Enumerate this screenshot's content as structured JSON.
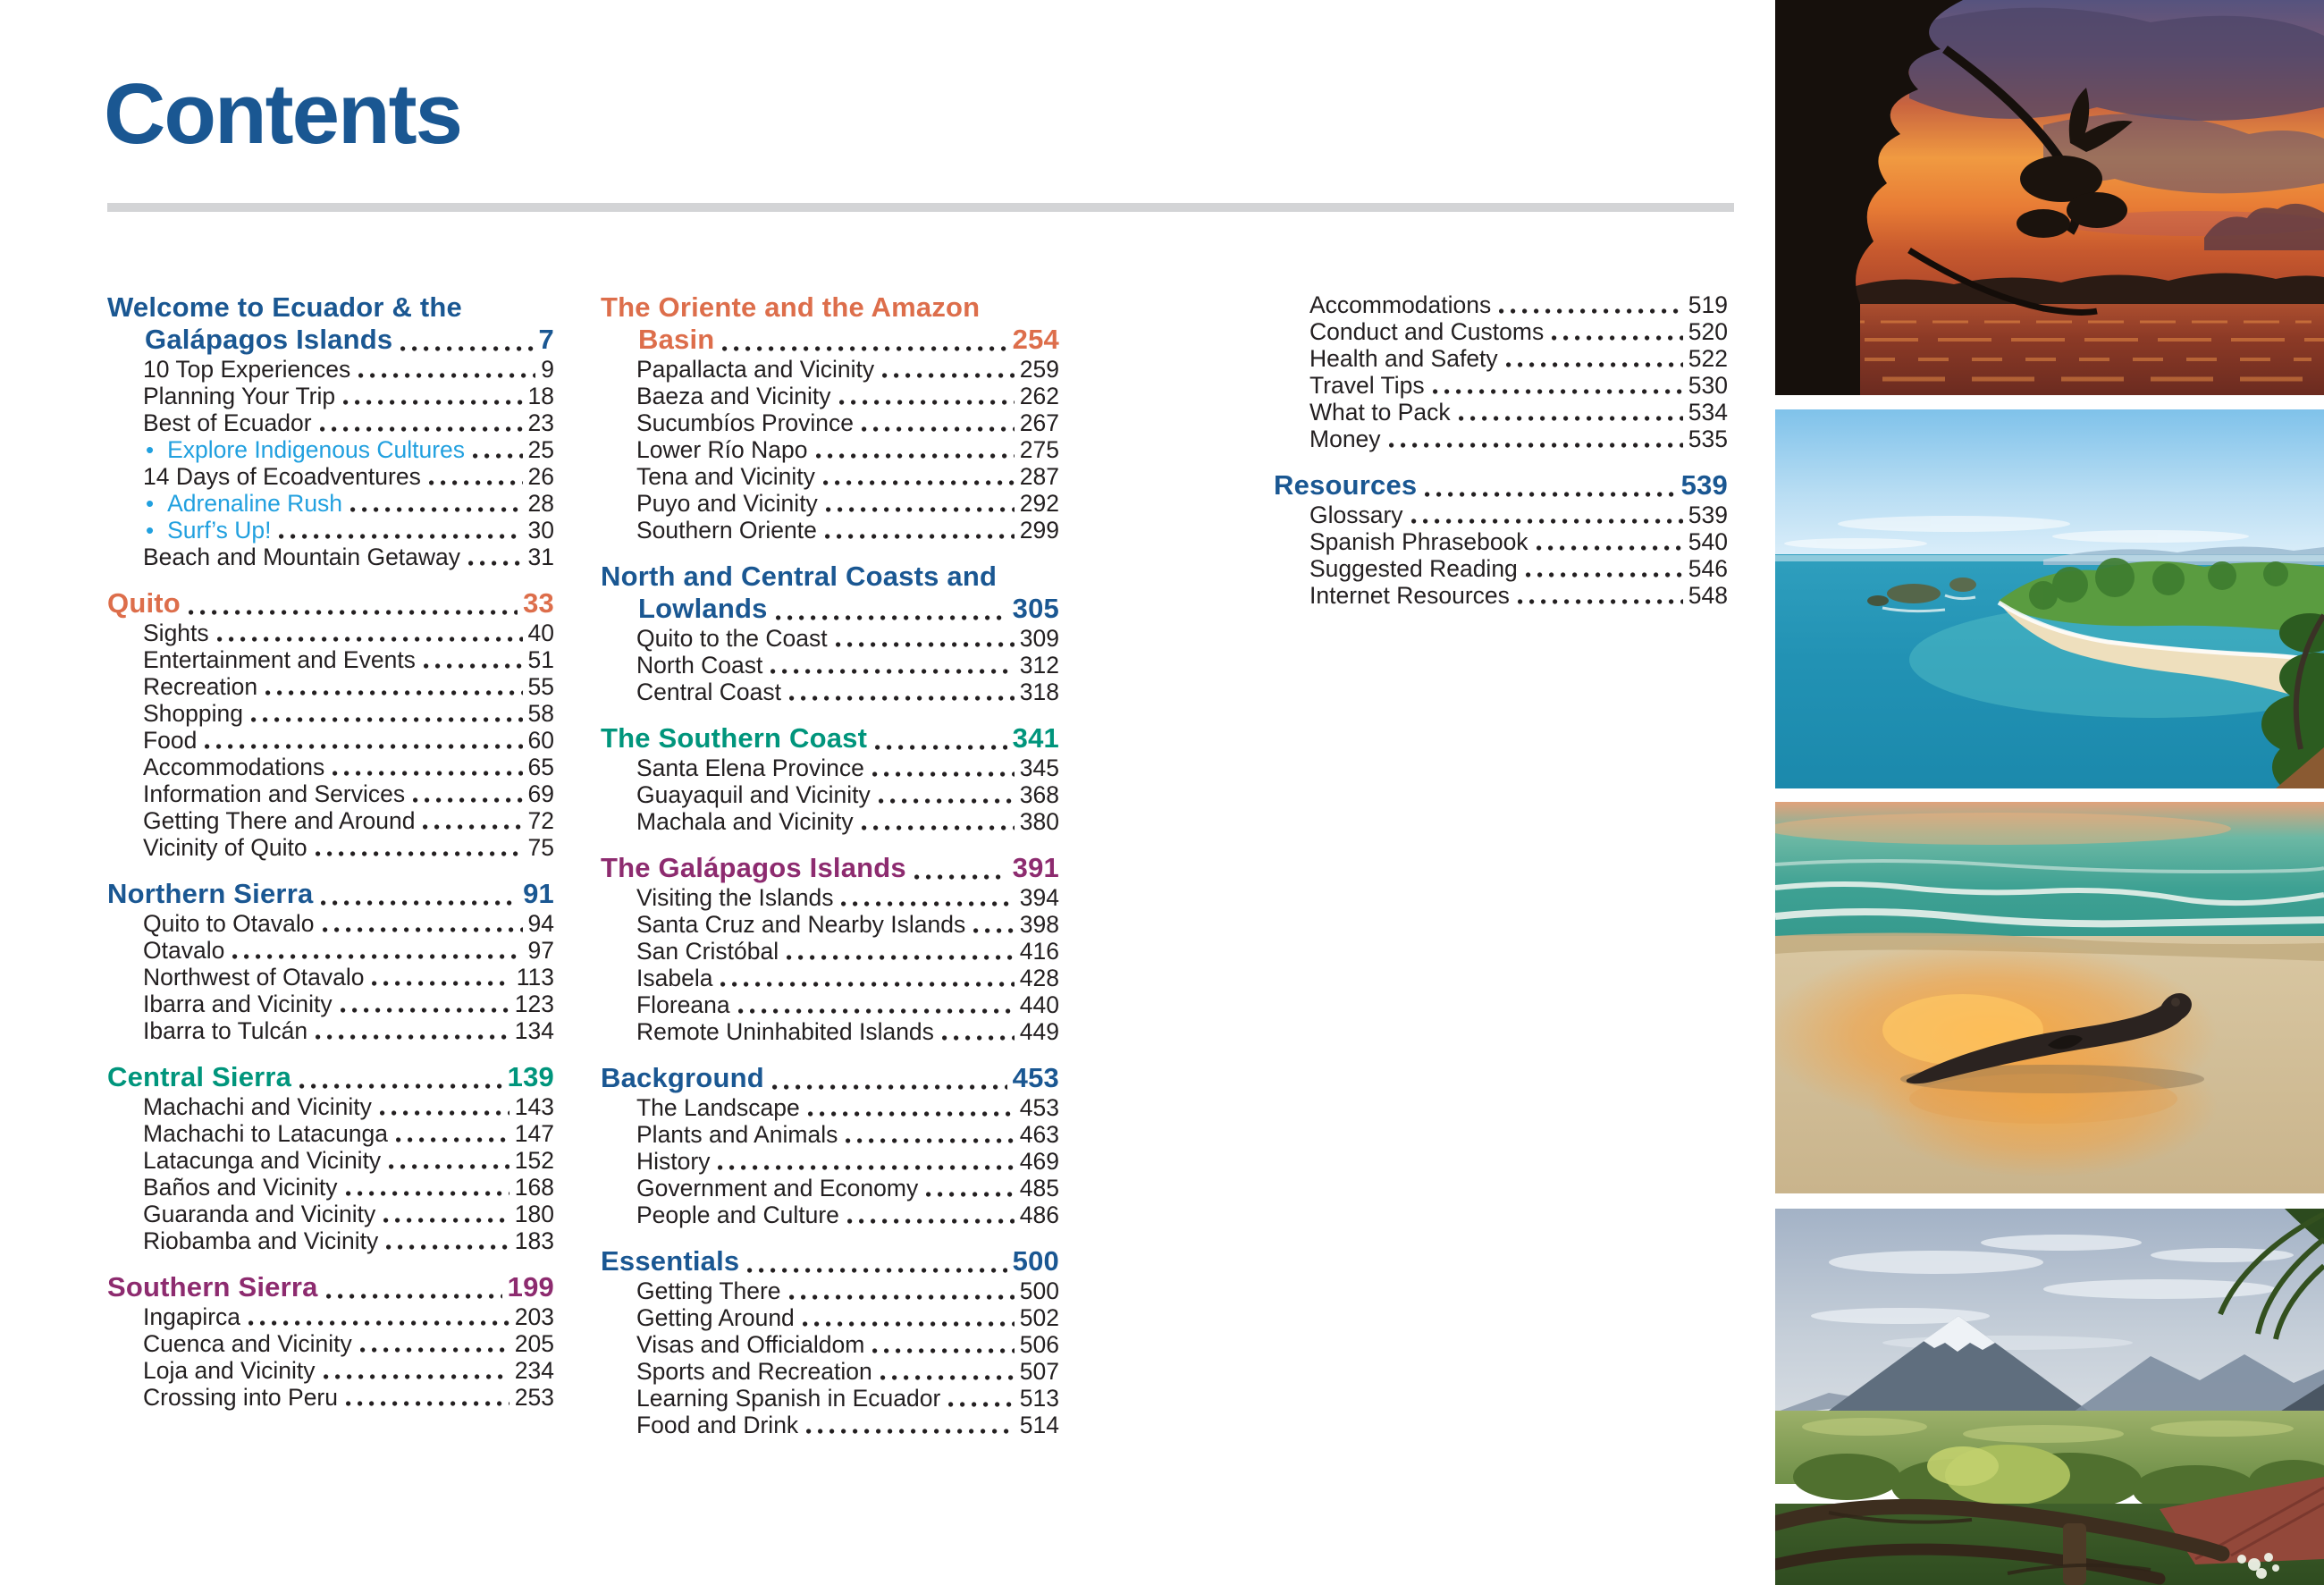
{
  "page": {
    "title": "Contents"
  },
  "colors": {
    "blue": "#1A5792",
    "orange": "#DD6E4B",
    "teal": "#00957C",
    "purple": "#8D2B6F",
    "light_blue": "#21A0DF",
    "text": "#231F20",
    "rule_gray": "#D3D4D6"
  },
  "toc": {
    "columns": [
      {
        "sections": [
          {
            "id": "welcome",
            "color": "blue",
            "line1": "Welcome to Ecuador & the",
            "line2": "Galápagos Islands",
            "page": "7",
            "items": [
              {
                "label": "10 Top Experiences",
                "page": "9"
              },
              {
                "label": "Planning Your Trip",
                "page": "18"
              },
              {
                "label": "Best of Ecuador",
                "page": "23"
              },
              {
                "label": "Explore Indigenous Cultures",
                "page": "25",
                "bullet": true
              },
              {
                "label": "14 Days of Ecoadventures",
                "page": "26"
              },
              {
                "label": "Adrenaline Rush",
                "page": "28",
                "bullet": true
              },
              {
                "label": "Surf’s Up!",
                "page": "30",
                "bullet": true
              },
              {
                "label": "Beach and Mountain Getaway",
                "page": "31"
              }
            ]
          },
          {
            "id": "quito",
            "color": "orange",
            "line1": "Quito",
            "page": "33",
            "items": [
              {
                "label": "Sights",
                "page": "40"
              },
              {
                "label": "Entertainment and Events",
                "page": "51"
              },
              {
                "label": "Recreation",
                "page": "55"
              },
              {
                "label": "Shopping",
                "page": "58"
              },
              {
                "label": "Food",
                "page": "60"
              },
              {
                "label": "Accommodations",
                "page": "65"
              },
              {
                "label": "Information and Services",
                "page": "69"
              },
              {
                "label": "Getting There and Around",
                "page": "72"
              },
              {
                "label": "Vicinity of Quito",
                "page": "75"
              }
            ]
          },
          {
            "id": "northern-sierra",
            "color": "blue",
            "line1": "Northern Sierra",
            "page": "91",
            "items": [
              {
                "label": "Quito to Otavalo",
                "page": "94"
              },
              {
                "label": "Otavalo",
                "page": "97"
              },
              {
                "label": "Northwest of Otavalo",
                "page": "113"
              },
              {
                "label": "Ibarra and Vicinity",
                "page": "123"
              },
              {
                "label": "Ibarra to Tulcán",
                "page": "134"
              }
            ]
          },
          {
            "id": "central-sierra",
            "color": "teal",
            "line1": "Central Sierra",
            "page": "139",
            "items": [
              {
                "label": "Machachi and Vicinity",
                "page": "143"
              },
              {
                "label": "Machachi to Latacunga",
                "page": "147"
              },
              {
                "label": "Latacunga and Vicinity",
                "page": "152"
              },
              {
                "label": "Baños and Vicinity",
                "page": "168"
              },
              {
                "label": "Guaranda and Vicinity",
                "page": "180"
              },
              {
                "label": "Riobamba and Vicinity",
                "page": "183"
              }
            ]
          },
          {
            "id": "southern-sierra",
            "color": "purple",
            "line1": "Southern Sierra",
            "page": "199",
            "items": [
              {
                "label": "Ingapirca",
                "page": "203"
              },
              {
                "label": "Cuenca and Vicinity",
                "page": "205"
              },
              {
                "label": "Loja and Vicinity",
                "page": "234"
              },
              {
                "label": "Crossing into Peru",
                "page": "253"
              }
            ]
          }
        ]
      },
      {
        "sections": [
          {
            "id": "oriente",
            "color": "orange",
            "line1": "The Oriente and the Amazon",
            "line2": "Basin",
            "page": "254",
            "items": [
              {
                "label": "Papallacta and Vicinity",
                "page": "259"
              },
              {
                "label": "Baeza and Vicinity",
                "page": "262"
              },
              {
                "label": "Sucumbíos Province",
                "page": "267"
              },
              {
                "label": "Lower Río Napo",
                "page": "275"
              },
              {
                "label": "Tena and Vicinity",
                "page": "287"
              },
              {
                "label": "Puyo and Vicinity",
                "page": "292"
              },
              {
                "label": "Southern Oriente",
                "page": "299"
              }
            ]
          },
          {
            "id": "north-central-coasts",
            "color": "blue",
            "line1": "North and Central Coasts and",
            "line2": "Lowlands",
            "page": "305",
            "items": [
              {
                "label": "Quito to the Coast",
                "page": "309"
              },
              {
                "label": "North Coast",
                "page": "312"
              },
              {
                "label": "Central Coast",
                "page": "318"
              }
            ]
          },
          {
            "id": "southern-coast",
            "color": "teal",
            "line1": "The Southern Coast",
            "page": "341",
            "items": [
              {
                "label": "Santa Elena Province",
                "page": "345"
              },
              {
                "label": "Guayaquil and Vicinity",
                "page": "368"
              },
              {
                "label": "Machala and Vicinity",
                "page": "380"
              }
            ]
          },
          {
            "id": "galapagos",
            "color": "purple",
            "line1": "The Galápagos Islands",
            "page": "391",
            "items": [
              {
                "label": "Visiting the Islands",
                "page": "394"
              },
              {
                "label": "Santa Cruz and Nearby Islands",
                "page": "398"
              },
              {
                "label": "San Cristóbal",
                "page": "416"
              },
              {
                "label": "Isabela",
                "page": "428"
              },
              {
                "label": "Floreana",
                "page": "440"
              },
              {
                "label": "Remote Uninhabited Islands",
                "page": "449"
              }
            ]
          },
          {
            "id": "background",
            "color": "blue",
            "line1": "Background",
            "page": "453",
            "items": [
              {
                "label": "The Landscape",
                "page": "453"
              },
              {
                "label": "Plants and Animals",
                "page": "463"
              },
              {
                "label": "History",
                "page": "469"
              },
              {
                "label": "Government and Economy",
                "page": "485"
              },
              {
                "label": "People and Culture",
                "page": "486"
              }
            ]
          },
          {
            "id": "essentials",
            "color": "blue",
            "line1": "Essentials",
            "page": "500",
            "items": [
              {
                "label": "Getting There",
                "page": "500"
              },
              {
                "label": "Getting Around",
                "page": "502"
              },
              {
                "label": "Visas and Officialdom",
                "page": "506"
              },
              {
                "label": "Sports and Recreation",
                "page": "507"
              },
              {
                "label": "Learning Spanish in Ecuador",
                "page": "513"
              },
              {
                "label": "Food and Drink",
                "page": "514"
              }
            ]
          }
        ]
      },
      {
        "sections": [
          {
            "id": "essentials-continued",
            "color": "blue",
            "items": [
              {
                "label": "Accommodations",
                "page": "519"
              },
              {
                "label": "Conduct and Customs",
                "page": "520"
              },
              {
                "label": "Health and Safety",
                "page": "522"
              },
              {
                "label": "Travel Tips",
                "page": "530"
              },
              {
                "label": "What to Pack",
                "page": "534"
              },
              {
                "label": "Money",
                "page": "535"
              }
            ]
          },
          {
            "id": "resources",
            "color": "blue",
            "line1": "Resources",
            "page": "539",
            "items": [
              {
                "label": "Glossary",
                "page": "539"
              },
              {
                "label": "Spanish Phrasebook",
                "page": "540"
              },
              {
                "label": "Suggested Reading",
                "page": "546"
              },
              {
                "label": "Internet Resources",
                "page": "548"
              }
            ]
          }
        ]
      }
    ]
  },
  "photos": [
    {
      "id": "amazon-river-sunset",
      "description": "Sunset over an Amazon river with silhouetted rainforest trees"
    },
    {
      "id": "coastal-cove",
      "description": "Turquoise cove with white-sand beach and green headland"
    },
    {
      "id": "sea-lion-beach",
      "description": "Sea lion resting on wet sand glowing at sunset"
    },
    {
      "id": "volcano-valley",
      "description": "Snow-capped volcano above a green Andean valley with wooden fence"
    }
  ]
}
